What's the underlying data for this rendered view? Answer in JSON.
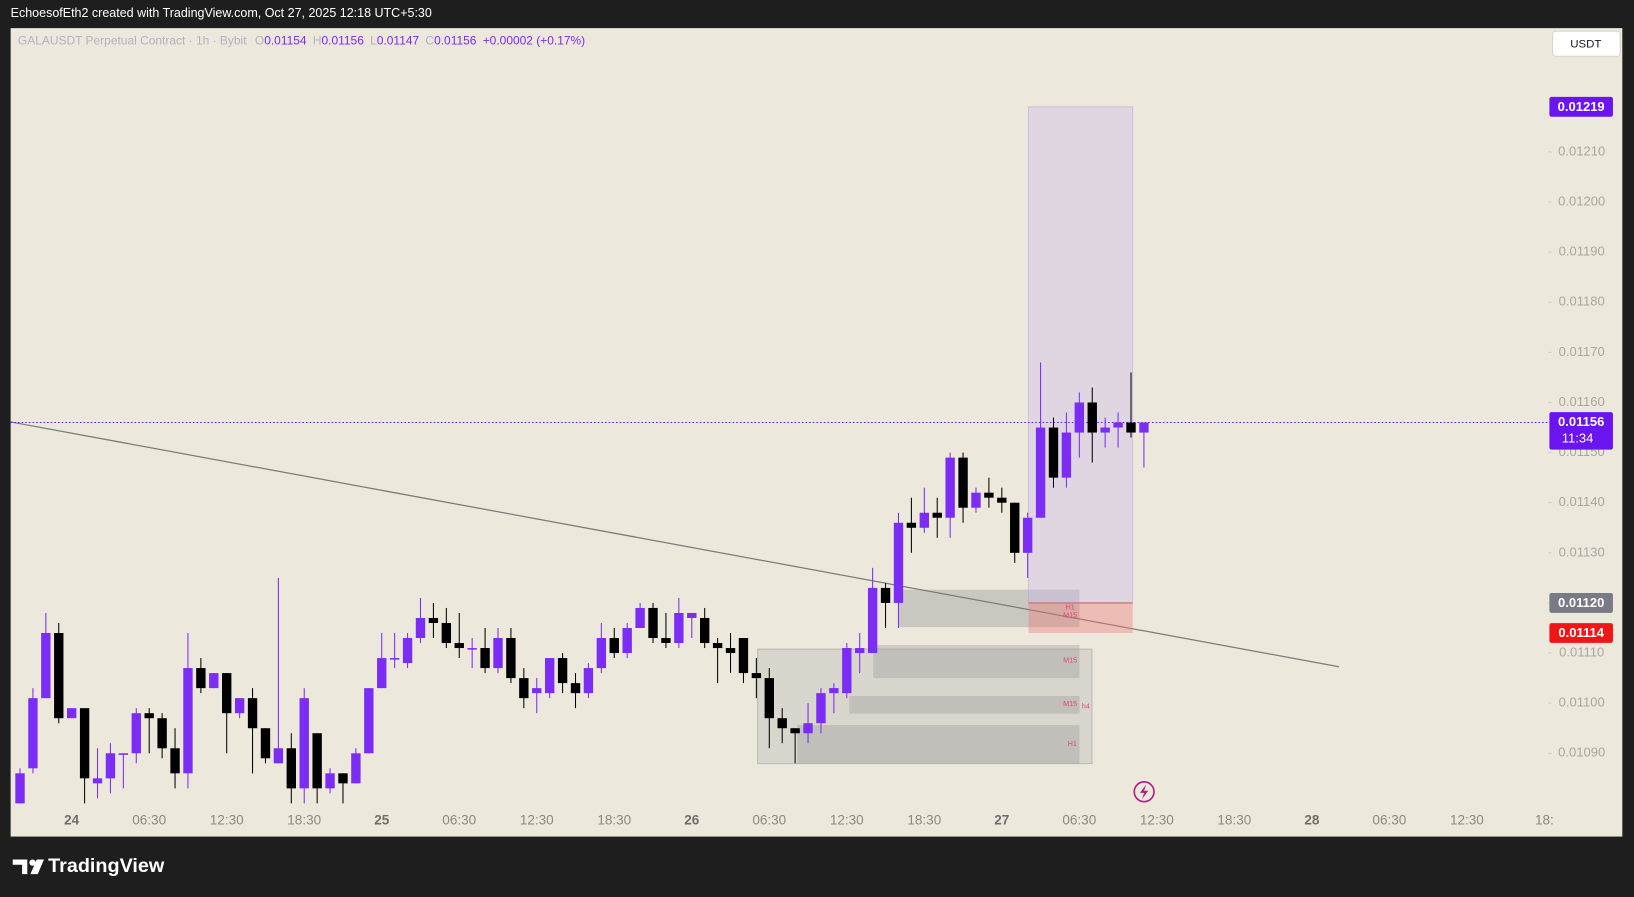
{
  "header": {
    "text": "EchoesofEth2 created with TradingView.com, Oct 27, 2025 12:18 UTC+5:30"
  },
  "chart_data": {
    "type": "candlestick",
    "title": "GALAUSDT Perpetual Contract · 1h · Bybit",
    "legend_values": [
      {
        "key": "O",
        "value": "0.01154"
      },
      {
        "key": "H",
        "value": "0.01156"
      },
      {
        "key": "L",
        "value": "0.01147"
      },
      {
        "key": "C",
        "value": "0.01156"
      }
    ],
    "change": "+0.00002 (+0.17%)",
    "currency": "USDT",
    "categories": [
      null,
      null,
      null,
      null,
      "24",
      null,
      null,
      null,
      null,
      null,
      "06:30",
      null,
      null,
      null,
      null,
      null,
      "12:30",
      null,
      null,
      null,
      null,
      null,
      "18:30",
      null,
      null,
      null,
      null,
      null,
      "25",
      null,
      null,
      null,
      null,
      null,
      "06:30",
      null,
      null,
      null,
      null,
      null,
      "12:30",
      null,
      null,
      null,
      null,
      null,
      "18:30",
      null,
      null,
      null,
      null,
      null,
      "26",
      null,
      null,
      null,
      null,
      null,
      "06:30",
      null,
      null,
      null,
      null,
      null,
      "12:30",
      null,
      null,
      null,
      null,
      null,
      "18:30",
      null,
      null,
      null,
      null,
      null,
      "27",
      null,
      null,
      null,
      null,
      null,
      "06:30",
      null,
      null,
      null,
      null,
      null,
      "12:30",
      null,
      null,
      null,
      null,
      null,
      "18:30",
      null,
      null,
      null,
      null,
      null,
      "28",
      null,
      null,
      null,
      null,
      null,
      "06:30",
      null,
      null,
      null,
      null,
      null,
      "12:30",
      null,
      null,
      null,
      null,
      null,
      "18:"
    ],
    "open": [
      0.0108,
      0.01087,
      0.01101,
      0.01114,
      0.01097,
      0.01099,
      0.01084,
      0.01085,
      0.0109,
      0.0109,
      0.01098,
      0.01097,
      0.01091,
      0.01086,
      0.01107,
      0.01103,
      0.01106,
      0.01098,
      0.01101,
      0.01095,
      0.01088,
      0.01091,
      0.01083,
      0.01094,
      0.01083,
      0.01086,
      0.01084,
      0.0109,
      0.01103,
      0.01109,
      0.01108,
      0.01113,
      0.01117,
      0.01116,
      0.01112,
      0.01111,
      0.01111,
      0.01107,
      0.01113,
      0.01105,
      0.01102,
      0.01102,
      0.01109,
      0.01104,
      0.01102,
      0.01107,
      0.01113,
      0.0111,
      0.01115,
      0.01119,
      0.01113,
      0.01112,
      0.01117,
      0.01117,
      0.01112,
      0.01111,
      0.01113,
      0.01106,
      0.01105,
      0.01097,
      0.01095,
      0.01094,
      0.01096,
      0.01102,
      0.01102,
      0.0111,
      0.0111,
      0.01123,
      0.0112,
      0.01136,
      0.01135,
      0.01138,
      0.01137,
      0.01149,
      0.01139,
      0.01142,
      0.01141,
      0.0114,
      0.0113,
      0.01137,
      0.01155,
      0.01145,
      0.01154,
      0.0116,
      0.01154,
      0.01155,
      0.01156,
      0.01154,
      null,
      null,
      null,
      null,
      null,
      null,
      null,
      null,
      null,
      null,
      null,
      null,
      null,
      null,
      null,
      null,
      null,
      null,
      null,
      null,
      null,
      null,
      null,
      null,
      null,
      null,
      null,
      null,
      null,
      null,
      null
    ],
    "high": [
      0.01087,
      0.01103,
      0.01118,
      0.01116,
      0.01099,
      0.01099,
      0.01091,
      0.01092,
      0.0109,
      0.01099,
      0.01099,
      0.01098,
      0.01095,
      0.01114,
      0.01109,
      0.01106,
      0.01106,
      0.01101,
      0.01103,
      0.01095,
      0.01125,
      0.01094,
      0.01103,
      0.01094,
      0.01087,
      0.01086,
      0.01091,
      0.01103,
      0.01114,
      0.01114,
      0.01114,
      0.01121,
      0.0112,
      0.01119,
      0.01118,
      0.01113,
      0.01115,
      0.01115,
      0.01115,
      0.01107,
      0.01105,
      0.01109,
      0.0111,
      0.01106,
      0.01108,
      0.01116,
      0.01115,
      0.01116,
      0.0112,
      0.0112,
      0.01118,
      0.01121,
      0.01118,
      0.01119,
      0.01113,
      0.01114,
      0.01113,
      0.01109,
      0.01107,
      0.01099,
      0.01095,
      0.011,
      0.01103,
      0.01104,
      0.01112,
      0.01114,
      0.01127,
      0.01124,
      0.01138,
      0.01141,
      0.01143,
      0.01141,
      0.0115,
      0.0115,
      0.01143,
      0.01145,
      0.01143,
      0.0114,
      0.01138,
      0.01168,
      0.01157,
      0.01158,
      0.01162,
      0.01163,
      0.01157,
      0.01158,
      0.01166,
      0.01156,
      null,
      null,
      null,
      null,
      null,
      null,
      null,
      null,
      null,
      null,
      null,
      null,
      null,
      null,
      null,
      null,
      null,
      null,
      null,
      null,
      null,
      null,
      null,
      null,
      null,
      null,
      null,
      null,
      null,
      null,
      null
    ],
    "low": [
      0.0108,
      0.01086,
      0.01101,
      0.01096,
      0.01097,
      0.0108,
      0.01081,
      0.01082,
      0.01083,
      0.01088,
      0.0109,
      0.01089,
      0.01083,
      0.01083,
      0.01102,
      0.01103,
      0.0109,
      0.01097,
      0.01086,
      0.01088,
      0.01088,
      0.0108,
      0.0108,
      0.0108,
      0.01082,
      0.0108,
      0.01084,
      0.0109,
      0.01103,
      0.01107,
      0.01107,
      0.01112,
      0.01113,
      0.01111,
      0.01109,
      0.01107,
      0.01106,
      0.01106,
      0.01104,
      0.01099,
      0.01098,
      0.01101,
      0.01102,
      0.01099,
      0.01101,
      0.01106,
      0.01109,
      0.01109,
      0.01115,
      0.01112,
      0.01111,
      0.01111,
      0.01113,
      0.01111,
      0.01104,
      0.01106,
      0.01104,
      0.01101,
      0.01091,
      0.01092,
      0.01088,
      0.01092,
      0.01094,
      0.01098,
      0.01101,
      0.01106,
      0.0111,
      0.01115,
      0.01115,
      0.0113,
      0.01134,
      0.01133,
      0.01133,
      0.01136,
      0.01138,
      0.01139,
      0.01138,
      0.01128,
      0.01125,
      0.01137,
      0.01143,
      0.01143,
      0.01149,
      0.01148,
      0.01151,
      0.01151,
      0.01153,
      0.01147,
      null,
      null,
      null,
      null,
      null,
      null,
      null,
      null,
      null,
      null,
      null,
      null,
      null,
      null,
      null,
      null,
      null,
      null,
      null,
      null,
      null,
      null,
      null,
      null,
      null,
      null,
      null,
      null,
      null,
      null,
      null
    ],
    "close": [
      0.01086,
      0.01101,
      0.01114,
      0.01097,
      0.01099,
      0.01085,
      0.01085,
      0.0109,
      0.0109,
      0.01098,
      0.01097,
      0.01091,
      0.01086,
      0.01107,
      0.01103,
      0.01106,
      0.01098,
      0.01101,
      0.01095,
      0.01089,
      0.01091,
      0.01083,
      0.01101,
      0.01083,
      0.01086,
      0.01084,
      0.0109,
      0.01103,
      0.01109,
      0.01109,
      0.01113,
      0.01117,
      0.01116,
      0.01112,
      0.01111,
      0.01111,
      0.01107,
      0.01113,
      0.01105,
      0.01101,
      0.01103,
      0.01109,
      0.01104,
      0.01102,
      0.01107,
      0.01113,
      0.0111,
      0.01115,
      0.01119,
      0.01113,
      0.01112,
      0.01118,
      0.01118,
      0.01112,
      0.01111,
      0.0111,
      0.01106,
      0.01105,
      0.01097,
      0.01095,
      0.01094,
      0.01096,
      0.01102,
      0.01103,
      0.01111,
      0.01111,
      0.01123,
      0.0112,
      0.01136,
      0.01135,
      0.01138,
      0.01137,
      0.01149,
      0.01139,
      0.01142,
      0.01141,
      0.0114,
      0.0113,
      0.01137,
      0.01155,
      0.01145,
      0.01154,
      0.0116,
      0.01154,
      0.01155,
      0.01156,
      0.01154,
      0.01156,
      null,
      null,
      null,
      null,
      null,
      null,
      null,
      null,
      null,
      null,
      null,
      null,
      null,
      null,
      null,
      null,
      null,
      null,
      null,
      null,
      null,
      null,
      null,
      null,
      null,
      null,
      null,
      null,
      null,
      null,
      null
    ],
    "up_color": "#7b2cf5",
    "down_color": "#000000",
    "ylim": [
      0.010792,
      0.012347
    ],
    "yticks": [
      {
        "value": 0.0109,
        "label": "0.01090"
      },
      {
        "value": 0.011,
        "label": "0.01100"
      },
      {
        "value": 0.0111,
        "label": "0.01110"
      },
      {
        "value": 0.0112,
        "label": "0.01120"
      },
      {
        "value": 0.0113,
        "label": "0.01130"
      },
      {
        "value": 0.0114,
        "label": "0.01140"
      },
      {
        "value": 0.0115,
        "label": "0.01150"
      },
      {
        "value": 0.0116,
        "label": "0.01160"
      },
      {
        "value": 0.0117,
        "label": "0.01170"
      },
      {
        "value": 0.0118,
        "label": "0.01180"
      },
      {
        "value": 0.0119,
        "label": "0.01190"
      },
      {
        "value": 0.012,
        "label": "0.01200"
      },
      {
        "value": 0.0121,
        "label": "0.01210"
      }
    ],
    "grid": false,
    "price_tags": [
      {
        "value": 0.01219,
        "label": "0.01219",
        "color": "#6a14f0"
      },
      {
        "value": 0.01156,
        "label": "0.01156",
        "sub": "11:34",
        "color": "#6a14f0"
      },
      {
        "value": 0.0112,
        "label": "0.01120",
        "color": "#787b86"
      },
      {
        "value": 0.01114,
        "label": "0.01114",
        "color": "#f01616"
      }
    ],
    "zone_labels": [
      "H1",
      "M15",
      "M15",
      "M15",
      "h4",
      "H1"
    ]
  },
  "footer": {
    "brand": "TradingView"
  }
}
